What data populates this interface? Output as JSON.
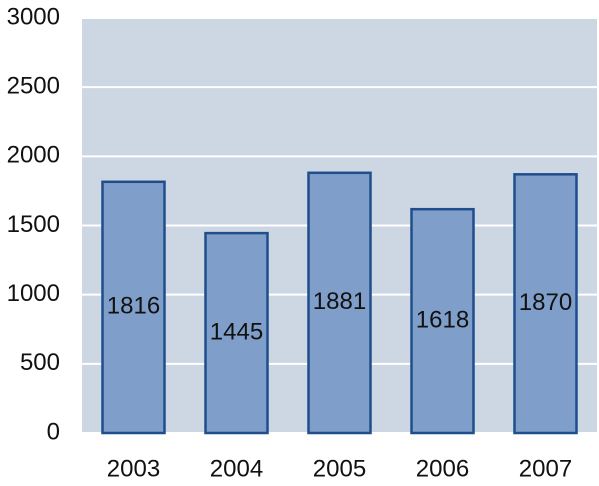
{
  "chart_data": {
    "type": "bar",
    "categories": [
      "2003",
      "2004",
      "2005",
      "2006",
      "2007"
    ],
    "values": [
      1816,
      1445,
      1881,
      1618,
      1870
    ],
    "color": "#7f9fca",
    "edge_color": "#1f4e8c",
    "background": "#cdd7e3",
    "ylim": [
      0,
      3000
    ],
    "yticks": [
      0,
      500,
      1000,
      1500,
      2000,
      2500,
      3000
    ],
    "grid": true
  }
}
